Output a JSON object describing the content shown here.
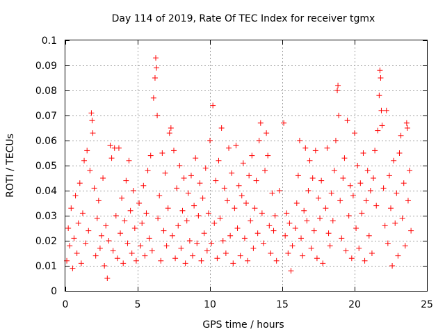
{
  "chart_data": {
    "type": "scatter",
    "title": "Day 114 of 2019, Rate Of TEC Index for receiver tgmx",
    "xlabel": "GPS time / hours",
    "ylabel": "ROTI / TECUs",
    "xlim": [
      0,
      25
    ],
    "ylim": [
      0,
      0.1
    ],
    "x_ticks": [
      0,
      5,
      10,
      15,
      20,
      25
    ],
    "x_tick_labels": [
      "0",
      "5",
      "10",
      "15",
      "20",
      "25"
    ],
    "y_ticks": [
      0,
      0.01,
      0.02,
      0.03,
      0.04,
      0.05,
      0.06,
      0.07,
      0.08,
      0.09,
      0.1
    ],
    "y_tick_labels": [
      "0",
      "0.01",
      "0.02",
      "0.03",
      "0.04",
      "0.05",
      "0.06",
      "0.07",
      "0.08",
      "0.09",
      "0.1"
    ],
    "grid": true,
    "marker": "+",
    "color": "#ff0000",
    "series": [
      {
        "name": "ROTI",
        "points": [
          [
            0.1,
            0.012
          ],
          [
            0.2,
            0.025
          ],
          [
            0.3,
            0.018
          ],
          [
            0.4,
            0.033
          ],
          [
            0.5,
            0.009
          ],
          [
            0.6,
            0.021
          ],
          [
            0.7,
            0.038
          ],
          [
            0.8,
            0.015
          ],
          [
            0.9,
            0.027
          ],
          [
            1.0,
            0.043
          ],
          [
            1.1,
            0.011
          ],
          [
            1.2,
            0.031
          ],
          [
            1.3,
            0.052
          ],
          [
            1.4,
            0.019
          ],
          [
            1.5,
            0.056
          ],
          [
            1.6,
            0.024
          ],
          [
            1.7,
            0.048
          ],
          [
            1.8,
            0.071
          ],
          [
            1.85,
            0.068
          ],
          [
            1.9,
            0.063
          ],
          [
            2.0,
            0.041
          ],
          [
            2.1,
            0.014
          ],
          [
            2.2,
            0.029
          ],
          [
            2.3,
            0.036
          ],
          [
            2.4,
            0.017
          ],
          [
            2.5,
            0.022
          ],
          [
            2.6,
            0.045
          ],
          [
            2.7,
            0.01
          ],
          [
            2.8,
            0.026
          ],
          [
            2.9,
            0.005
          ],
          [
            3.0,
            0.02
          ],
          [
            3.1,
            0.058
          ],
          [
            3.2,
            0.053
          ],
          [
            3.3,
            0.016
          ],
          [
            3.4,
            0.057
          ],
          [
            3.5,
            0.03
          ],
          [
            3.6,
            0.013
          ],
          [
            3.7,
            0.057
          ],
          [
            3.8,
            0.023
          ],
          [
            3.9,
            0.037
          ],
          [
            4.0,
            0.011
          ],
          [
            4.1,
            0.028
          ],
          [
            4.2,
            0.044
          ],
          [
            4.3,
            0.019
          ],
          [
            4.4,
            0.052
          ],
          [
            4.5,
            0.032
          ],
          [
            4.6,
            0.015
          ],
          [
            4.7,
            0.04
          ],
          [
            4.8,
            0.025
          ],
          [
            4.9,
            0.012
          ],
          [
            5.1,
            0.035
          ],
          [
            5.2,
            0.018
          ],
          [
            5.3,
            0.027
          ],
          [
            5.4,
            0.042
          ],
          [
            5.5,
            0.014
          ],
          [
            5.6,
            0.031
          ],
          [
            5.7,
            0.048
          ],
          [
            5.8,
            0.021
          ],
          [
            5.9,
            0.054
          ],
          [
            6.0,
            0.016
          ],
          [
            6.1,
            0.077
          ],
          [
            6.2,
            0.085
          ],
          [
            6.25,
            0.093
          ],
          [
            6.3,
            0.089
          ],
          [
            6.35,
            0.07
          ],
          [
            6.4,
            0.029
          ],
          [
            6.5,
            0.038
          ],
          [
            6.6,
            0.012
          ],
          [
            6.7,
            0.055
          ],
          [
            6.8,
            0.024
          ],
          [
            6.9,
            0.047
          ],
          [
            7.0,
            0.018
          ],
          [
            7.1,
            0.033
          ],
          [
            7.2,
            0.063
          ],
          [
            7.3,
            0.065
          ],
          [
            7.4,
            0.022
          ],
          [
            7.5,
            0.056
          ],
          [
            7.6,
            0.013
          ],
          [
            7.7,
            0.041
          ],
          [
            7.8,
            0.026
          ],
          [
            7.9,
            0.05
          ],
          [
            8.0,
            0.017
          ],
          [
            8.1,
            0.032
          ],
          [
            8.2,
            0.045
          ],
          [
            8.3,
            0.011
          ],
          [
            8.4,
            0.028
          ],
          [
            8.5,
            0.039
          ],
          [
            8.6,
            0.02
          ],
          [
            8.7,
            0.046
          ],
          [
            8.8,
            0.014
          ],
          [
            8.9,
            0.034
          ],
          [
            9.0,
            0.053
          ],
          [
            9.1,
            0.019
          ],
          [
            9.2,
            0.03
          ],
          [
            9.3,
            0.043
          ],
          [
            9.4,
            0.012
          ],
          [
            9.5,
            0.037
          ],
          [
            9.6,
            0.023
          ],
          [
            9.7,
            0.049
          ],
          [
            9.8,
            0.016
          ],
          [
            9.9,
            0.031
          ],
          [
            10.0,
            0.06
          ],
          [
            10.1,
            0.019
          ],
          [
            10.2,
            0.074
          ],
          [
            10.3,
            0.027
          ],
          [
            10.4,
            0.044
          ],
          [
            10.5,
            0.013
          ],
          [
            10.6,
            0.052
          ],
          [
            10.7,
            0.029
          ],
          [
            10.8,
            0.065
          ],
          [
            10.9,
            0.02
          ],
          [
            11.0,
            0.041
          ],
          [
            11.1,
            0.015
          ],
          [
            11.2,
            0.036
          ],
          [
            11.3,
            0.057
          ],
          [
            11.4,
            0.022
          ],
          [
            11.5,
            0.047
          ],
          [
            11.6,
            0.011
          ],
          [
            11.7,
            0.033
          ],
          [
            11.8,
            0.058
          ],
          [
            11.9,
            0.025
          ],
          [
            12.0,
            0.042
          ],
          [
            12.1,
            0.014
          ],
          [
            12.2,
            0.038
          ],
          [
            12.3,
            0.051
          ],
          [
            12.4,
            0.021
          ],
          [
            12.5,
            0.035
          ],
          [
            12.6,
            0.012
          ],
          [
            12.7,
            0.046
          ],
          [
            12.8,
            0.028
          ],
          [
            12.9,
            0.054
          ],
          [
            13.0,
            0.017
          ],
          [
            13.1,
            0.033
          ],
          [
            13.2,
            0.044
          ],
          [
            13.3,
            0.023
          ],
          [
            13.4,
            0.06
          ],
          [
            13.5,
            0.067
          ],
          [
            13.6,
            0.031
          ],
          [
            13.7,
            0.019
          ],
          [
            13.8,
            0.048
          ],
          [
            13.9,
            0.063
          ],
          [
            14.0,
            0.054
          ],
          [
            14.1,
            0.026
          ],
          [
            14.2,
            0.015
          ],
          [
            14.3,
            0.039
          ],
          [
            14.4,
            0.024
          ],
          [
            14.5,
            0.03
          ],
          [
            14.6,
            0.012
          ],
          [
            14.8,
            0.04
          ],
          [
            15.1,
            0.067
          ],
          [
            15.2,
            0.022
          ],
          [
            15.3,
            0.031
          ],
          [
            15.4,
            0.015
          ],
          [
            15.5,
            0.027
          ],
          [
            15.6,
            0.008
          ],
          [
            15.7,
            0.018
          ],
          [
            15.9,
            0.025
          ],
          [
            16.0,
            0.035
          ],
          [
            16.1,
            0.046
          ],
          [
            16.2,
            0.06
          ],
          [
            16.3,
            0.021
          ],
          [
            16.4,
            0.014
          ],
          [
            16.5,
            0.032
          ],
          [
            16.6,
            0.057
          ],
          [
            16.7,
            0.028
          ],
          [
            16.8,
            0.04
          ],
          [
            16.9,
            0.052
          ],
          [
            17.0,
            0.017
          ],
          [
            17.1,
            0.045
          ],
          [
            17.2,
            0.024
          ],
          [
            17.3,
            0.056
          ],
          [
            17.4,
            0.013
          ],
          [
            17.5,
            0.037
          ],
          [
            17.6,
            0.029
          ],
          [
            17.7,
            0.044
          ],
          [
            17.8,
            0.011
          ],
          [
            18.0,
            0.033
          ],
          [
            18.1,
            0.057
          ],
          [
            18.2,
            0.023
          ],
          [
            18.3,
            0.018
          ],
          [
            18.4,
            0.039
          ],
          [
            18.5,
            0.028
          ],
          [
            18.6,
            0.048
          ],
          [
            18.7,
            0.06
          ],
          [
            18.8,
            0.08
          ],
          [
            18.85,
            0.082
          ],
          [
            18.9,
            0.07
          ],
          [
            19.0,
            0.036
          ],
          [
            19.1,
            0.021
          ],
          [
            19.2,
            0.045
          ],
          [
            19.3,
            0.053
          ],
          [
            19.4,
            0.016
          ],
          [
            19.5,
            0.068
          ],
          [
            19.6,
            0.03
          ],
          [
            19.7,
            0.042
          ],
          [
            19.8,
            0.013
          ],
          [
            19.9,
            0.038
          ],
          [
            20.0,
            0.063
          ],
          [
            20.1,
            0.025
          ],
          [
            20.2,
            0.05
          ],
          [
            20.3,
            0.017
          ],
          [
            20.4,
            0.043
          ],
          [
            20.5,
            0.031
          ],
          [
            20.6,
            0.055
          ],
          [
            20.7,
            0.012
          ],
          [
            20.8,
            0.036
          ],
          [
            20.9,
            0.048
          ],
          [
            21.0,
            0.022
          ],
          [
            21.1,
            0.04
          ],
          [
            21.2,
            0.015
          ],
          [
            21.3,
            0.045
          ],
          [
            21.4,
            0.056
          ],
          [
            21.5,
            0.034
          ],
          [
            21.6,
            0.064
          ],
          [
            21.7,
            0.078
          ],
          [
            21.75,
            0.088
          ],
          [
            21.8,
            0.085
          ],
          [
            21.85,
            0.072
          ],
          [
            21.9,
            0.066
          ],
          [
            22.0,
            0.041
          ],
          [
            22.1,
            0.026
          ],
          [
            22.2,
            0.072
          ],
          [
            22.3,
            0.019
          ],
          [
            22.4,
            0.046
          ],
          [
            22.5,
            0.033
          ],
          [
            22.6,
            0.01
          ],
          [
            22.7,
            0.052
          ],
          [
            22.8,
            0.027
          ],
          [
            22.9,
            0.039
          ],
          [
            23.0,
            0.014
          ],
          [
            23.1,
            0.055
          ],
          [
            23.2,
            0.062
          ],
          [
            23.3,
            0.029
          ],
          [
            23.4,
            0.043
          ],
          [
            23.5,
            0.018
          ],
          [
            23.6,
            0.067
          ],
          [
            23.65,
            0.065
          ],
          [
            23.7,
            0.036
          ],
          [
            23.8,
            0.048
          ],
          [
            23.9,
            0.024
          ]
        ]
      }
    ]
  }
}
